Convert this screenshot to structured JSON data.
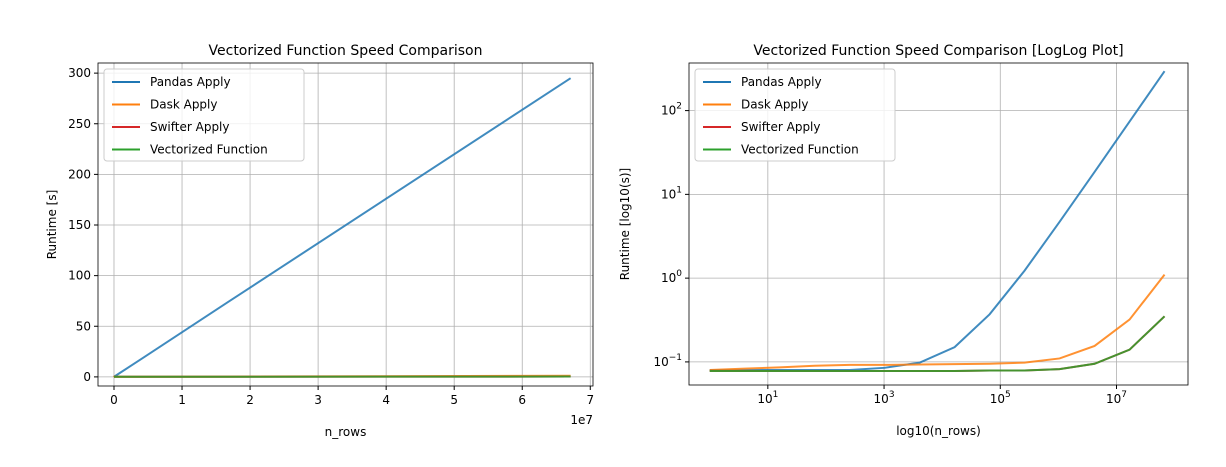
{
  "chart_data": [
    {
      "type": "line",
      "title": "Vectorized Function Speed Comparison",
      "x_label": "n_rows",
      "y_label": "Runtime [s]",
      "x_offset_label": "1e7",
      "x": [
        1,
        4,
        16,
        64,
        256,
        1024,
        4096,
        16384,
        65536,
        262144,
        1048576,
        4194304,
        16777216,
        67108864
      ],
      "series": [
        {
          "name": "Pandas Apply",
          "color": "#1f77b4",
          "values": [
            0.08,
            0.08,
            0.08,
            0.08,
            0.08,
            0.085,
            0.098,
            0.15,
            0.37,
            1.23,
            4.7,
            18.5,
            74,
            295
          ]
        },
        {
          "name": "Dask Apply",
          "color": "#ff7f0e",
          "values": [
            0.08,
            0.083,
            0.086,
            0.09,
            0.092,
            0.092,
            0.093,
            0.094,
            0.095,
            0.098,
            0.11,
            0.155,
            0.32,
            1.1
          ]
        },
        {
          "name": "Swifter Apply",
          "color": "#d62728",
          "values": [
            0.078,
            0.078,
            0.078,
            0.078,
            0.078,
            0.078,
            0.078,
            0.078,
            0.079,
            0.079,
            0.082,
            0.095,
            0.14,
            0.35
          ]
        },
        {
          "name": "Vectorized Function",
          "color": "#2ca02c",
          "values": [
            0.078,
            0.078,
            0.078,
            0.078,
            0.078,
            0.078,
            0.078,
            0.078,
            0.079,
            0.079,
            0.082,
            0.095,
            0.14,
            0.35
          ]
        }
      ],
      "xlim": [
        -2350000,
        70400000
      ],
      "xticks": [
        0,
        {
          "value": 10000000,
          "label": "1"
        },
        {
          "value": 20000000,
          "label": "2"
        },
        {
          "value": 30000000,
          "label": "3"
        },
        {
          "value": 40000000,
          "label": "4"
        },
        {
          "value": 50000000,
          "label": "5"
        },
        {
          "value": 60000000,
          "label": "6"
        },
        {
          "value": 70000000,
          "label": "7"
        }
      ],
      "ylim": [
        -9,
        310
      ],
      "yticks": [
        0,
        50,
        100,
        150,
        200,
        250,
        300
      ],
      "grid": true,
      "legend": "upper left",
      "log_x": false,
      "log_y": false
    },
    {
      "type": "line",
      "title": "Vectorized Function Speed Comparison [LogLog Plot]",
      "x_label": "log10(n_rows)",
      "y_label": "Runtime [log10(s)]",
      "x": [
        1,
        4,
        16,
        64,
        256,
        1024,
        4096,
        16384,
        65536,
        262144,
        1048576,
        4194304,
        16777216,
        67108864
      ],
      "series": [
        {
          "name": "Pandas Apply",
          "color": "#1f77b4",
          "values": [
            0.08,
            0.08,
            0.08,
            0.08,
            0.08,
            0.085,
            0.098,
            0.15,
            0.37,
            1.23,
            4.7,
            18.5,
            74,
            295
          ]
        },
        {
          "name": "Dask Apply",
          "color": "#ff7f0e",
          "values": [
            0.08,
            0.083,
            0.086,
            0.09,
            0.092,
            0.092,
            0.093,
            0.094,
            0.095,
            0.098,
            0.11,
            0.155,
            0.32,
            1.1
          ]
        },
        {
          "name": "Swifter Apply",
          "color": "#d62728",
          "values": [
            0.078,
            0.078,
            0.078,
            0.078,
            0.078,
            0.078,
            0.078,
            0.078,
            0.079,
            0.079,
            0.082,
            0.095,
            0.14,
            0.35
          ]
        },
        {
          "name": "Vectorized Function",
          "color": "#2ca02c",
          "values": [
            0.078,
            0.078,
            0.078,
            0.078,
            0.078,
            0.078,
            0.078,
            0.078,
            0.079,
            0.079,
            0.082,
            0.095,
            0.14,
            0.35
          ]
        }
      ],
      "xlim": [
        0.44,
        170000000
      ],
      "xticks": [
        {
          "value": 10,
          "label": "10",
          "exponent": "1"
        },
        {
          "value": 1000,
          "label": "10",
          "exponent": "3"
        },
        {
          "value": 100000,
          "label": "10",
          "exponent": "5"
        },
        {
          "value": 10000000,
          "label": "10",
          "exponent": "7"
        }
      ],
      "ylim": [
        0.053,
        370
      ],
      "yticks": [
        {
          "value": 0.1,
          "label": "10",
          "exponent": "−1"
        },
        {
          "value": 1,
          "label": "10",
          "exponent": "0"
        },
        {
          "value": 10,
          "label": "10",
          "exponent": "1"
        },
        {
          "value": 100,
          "label": "10",
          "exponent": "2"
        }
      ],
      "grid": true,
      "legend": "upper left",
      "log_x": true,
      "log_y": true
    }
  ]
}
